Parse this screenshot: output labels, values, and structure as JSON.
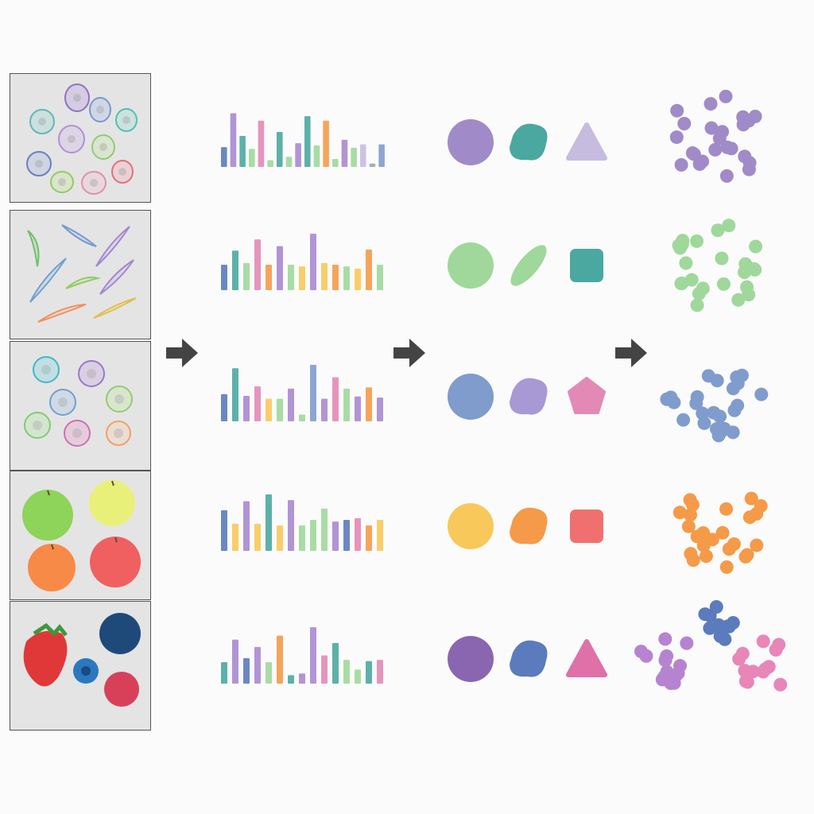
{
  "pipeline": {
    "colors": {
      "purple": "#a08ac8",
      "lavender": "#c6bce0",
      "teal": "#4aa8a0",
      "green": "#9fd89a",
      "blue": "#7f9ccc",
      "pink": "#e28ab5",
      "yellow": "#f8c85a",
      "orange": "#f59a48",
      "red": "#f07070",
      "deep_purple": "#8a66b0",
      "deep_blue": "#5b7bbd",
      "deep_pink": "#e070a8",
      "arrow": "#444444"
    },
    "rows": [
      {
        "image": "cells-round-mixed",
        "feature_bars": [
          0.35,
          0.95,
          0.55,
          0.32,
          0.82,
          0.12,
          0.62,
          0.18,
          0.42,
          0.9,
          0.38,
          0.82,
          0.14,
          0.48,
          0.34,
          0.4,
          0.06,
          0.4
        ],
        "bar_colors": [
          "#5b7bbd",
          "#a888d0",
          "#4aa8a0",
          "#9fd89a",
          "#e28ab5",
          "#9fd89a",
          "#4aa8a0",
          "#9fd89a",
          "#a888d0",
          "#4aa8a0",
          "#9fd89a",
          "#f59a48",
          "#9fd89a",
          "#a888d0",
          "#9fd89a",
          "#c6bce0",
          "#9aa",
          "#7f9ccc"
        ],
        "shapes": [
          {
            "type": "circle",
            "color": "#a08ac8"
          },
          {
            "type": "blob",
            "color": "#4aa8a0"
          },
          {
            "type": "triangle",
            "color": "#c6bce0"
          }
        ],
        "cluster_color": "#a08ac8"
      },
      {
        "image": "cells-spindle",
        "feature_bars": [
          0.45,
          0.7,
          0.48,
          0.9,
          0.45,
          0.78,
          0.45,
          0.42,
          1.0,
          0.48,
          0.45,
          0.42,
          0.38,
          0.72,
          0.45
        ],
        "bar_colors": [
          "#5b7bbd",
          "#4aa8a0",
          "#9fd89a",
          "#e28ab5",
          "#f59a48",
          "#a888d0",
          "#9fd89a",
          "#f8c85a",
          "#a888d0",
          "#f8c85a",
          "#f59a48",
          "#9fd89a",
          "#f8c85a",
          "#f59a48",
          "#9fd89a"
        ],
        "shapes": [
          {
            "type": "circle",
            "color": "#9fd89a"
          },
          {
            "type": "ellipse",
            "color": "#9fd89a"
          },
          {
            "type": "square",
            "color": "#4aa8a0"
          }
        ],
        "cluster_color": "#9fd89a"
      },
      {
        "image": "cells-round-ringed",
        "feature_bars": [
          0.48,
          0.94,
          0.45,
          0.62,
          0.4,
          0.4,
          0.58,
          0.12,
          1.0,
          0.4,
          0.78,
          0.58,
          0.44,
          0.6,
          0.42
        ],
        "bar_colors": [
          "#5b7bbd",
          "#4aa8a0",
          "#a888d0",
          "#e28ab5",
          "#f8c85a",
          "#9fd89a",
          "#a888d0",
          "#9fd89a",
          "#7f9ccc",
          "#a888d0",
          "#e28ab5",
          "#9fd89a",
          "#a888d0",
          "#f59a48",
          "#a888d0"
        ],
        "shapes": [
          {
            "type": "circle",
            "color": "#7f9ccc"
          },
          {
            "type": "blob",
            "color": "#a898d4"
          },
          {
            "type": "pentagon",
            "color": "#e28ab5"
          }
        ],
        "cluster_color": "#7f9ccc"
      },
      {
        "image": "apples",
        "feature_bars": [
          0.72,
          0.48,
          0.88,
          0.48,
          1.0,
          0.45,
          0.9,
          0.45,
          0.55,
          0.75,
          0.52,
          0.55,
          0.58,
          0.45,
          0.55
        ],
        "bar_colors": [
          "#5b7bbd",
          "#f8c85a",
          "#a888d0",
          "#f8c85a",
          "#4aa8a0",
          "#f8c85a",
          "#a888d0",
          "#9fd89a",
          "#9fd89a",
          "#9fd89a",
          "#a888d0",
          "#5b7bbd",
          "#e28ab5",
          "#f59a48",
          "#f8c85a"
        ],
        "shapes": [
          {
            "type": "circle",
            "color": "#f8c85a"
          },
          {
            "type": "blob",
            "color": "#f59a48"
          },
          {
            "type": "square",
            "color": "#f07070"
          }
        ],
        "cluster_color": "#f59a48"
      },
      {
        "image": "berries",
        "feature_bars": [
          0.38,
          0.78,
          0.45,
          0.65,
          0.38,
          0.85,
          0.15,
          0.18,
          1.0,
          0.5,
          0.72,
          0.42,
          0.25,
          0.4,
          0.42
        ],
        "bar_colors": [
          "#4aa8a0",
          "#a888d0",
          "#5b7bbd",
          "#a888d0",
          "#9fd89a",
          "#f59a48",
          "#4aa8a0",
          "#a888d0",
          "#a888d0",
          "#e28ab5",
          "#4aa8a0",
          "#9fd89a",
          "#9fd89a",
          "#4aa8a0",
          "#e28ab5"
        ],
        "shapes": [
          {
            "type": "circle",
            "color": "#8a66b0"
          },
          {
            "type": "blob",
            "color": "#5b7bbd"
          },
          {
            "type": "triangle",
            "color": "#e070a8"
          }
        ],
        "cluster_color": "multi",
        "cluster_colors": [
          "#b683d0",
          "#5b7bbd",
          "#e886b8"
        ]
      }
    ]
  }
}
